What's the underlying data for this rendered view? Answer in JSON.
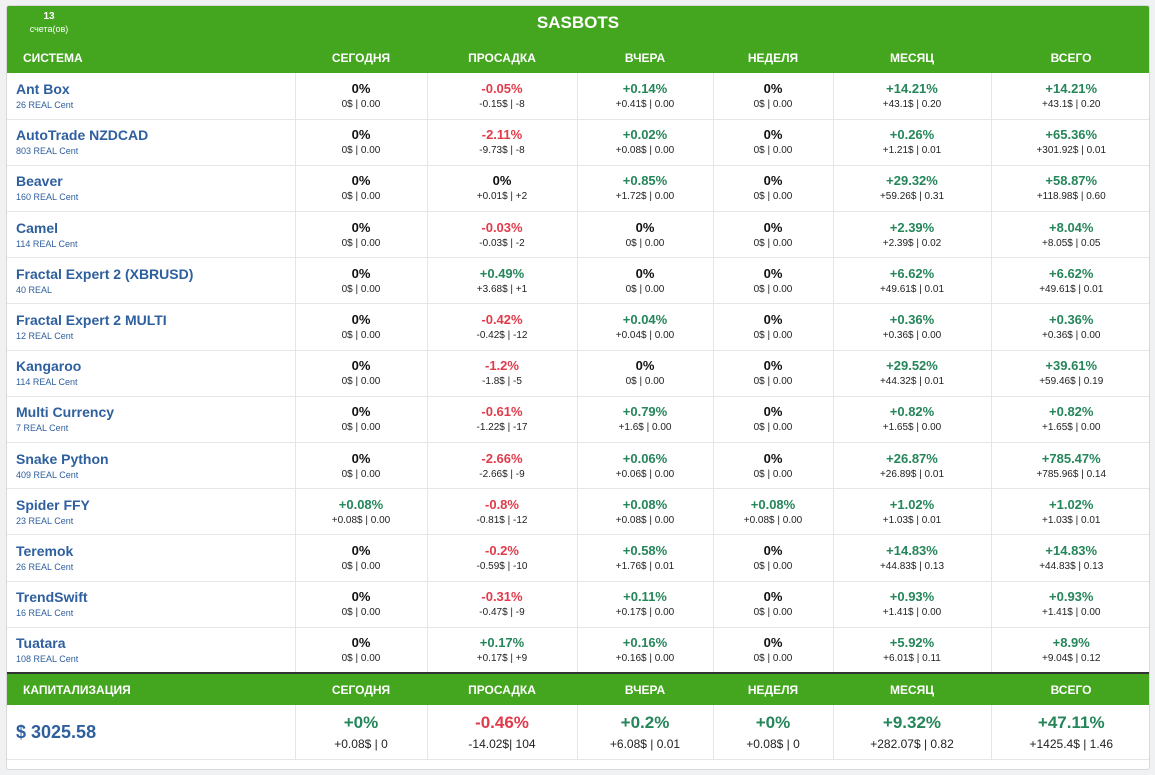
{
  "header": {
    "title": "SASBOTS",
    "accounts_count": "13",
    "accounts_label": "счета(ов)"
  },
  "columns": [
    "СИСТЕМА",
    "СЕГОДНЯ",
    "ПРОСАДКА",
    "ВЧЕРА",
    "НЕДЕЛЯ",
    "МЕСЯЦ",
    "ВСЕГО"
  ],
  "colors": {
    "header_green": "#44a51f",
    "positive": "#25865a",
    "negative": "#e13b4b",
    "link": "#2e5f9e"
  },
  "rows": [
    {
      "name": "Ant Box",
      "account": "26 REAL Cent",
      "cells": [
        [
          "0%",
          "0$ | 0.00"
        ],
        [
          "-0.05%",
          "-0.15$ | -8"
        ],
        [
          "+0.14%",
          "+0.41$ | 0.00"
        ],
        [
          "0%",
          "0$ | 0.00"
        ],
        [
          "+14.21%",
          "+43.1$ | 0.20"
        ],
        [
          "+14.21%",
          "+43.1$ | 0.20"
        ]
      ]
    },
    {
      "name": "AutoTrade NZDCAD",
      "account": "803 REAL Cent",
      "cells": [
        [
          "0%",
          "0$ | 0.00"
        ],
        [
          "-2.11%",
          "-9.73$ | -8"
        ],
        [
          "+0.02%",
          "+0.08$ | 0.00"
        ],
        [
          "0%",
          "0$ | 0.00"
        ],
        [
          "+0.26%",
          "+1.21$ | 0.01"
        ],
        [
          "+65.36%",
          "+301.92$ | 0.01"
        ]
      ]
    },
    {
      "name": "Beaver",
      "account": "160 REAL Cent",
      "cells": [
        [
          "0%",
          "0$ | 0.00"
        ],
        [
          "0%",
          "+0.01$ | +2"
        ],
        [
          "+0.85%",
          "+1.72$ | 0.00"
        ],
        [
          "0%",
          "0$ | 0.00"
        ],
        [
          "+29.32%",
          "+59.26$ | 0.31"
        ],
        [
          "+58.87%",
          "+118.98$ | 0.60"
        ]
      ]
    },
    {
      "name": "Camel",
      "account": "114 REAL Cent",
      "cells": [
        [
          "0%",
          "0$ | 0.00"
        ],
        [
          "-0.03%",
          "-0.03$ | -2"
        ],
        [
          "0%",
          "0$ | 0.00"
        ],
        [
          "0%",
          "0$ | 0.00"
        ],
        [
          "+2.39%",
          "+2.39$ | 0.02"
        ],
        [
          "+8.04%",
          "+8.05$ | 0.05"
        ]
      ]
    },
    {
      "name": "Fractal Expert 2 (XBRUSD)",
      "account": "40 REAL",
      "cells": [
        [
          "0%",
          "0$ | 0.00"
        ],
        [
          "+0.49%",
          "+3.68$ | +1"
        ],
        [
          "0%",
          "0$ | 0.00"
        ],
        [
          "0%",
          "0$ | 0.00"
        ],
        [
          "+6.62%",
          "+49.61$ | 0.01"
        ],
        [
          "+6.62%",
          "+49.61$ | 0.01"
        ]
      ]
    },
    {
      "name": "Fractal Expert 2 MULTI",
      "account": "12 REAL Cent",
      "cells": [
        [
          "0%",
          "0$ | 0.00"
        ],
        [
          "-0.42%",
          "-0.42$ | -12"
        ],
        [
          "+0.04%",
          "+0.04$ | 0.00"
        ],
        [
          "0%",
          "0$ | 0.00"
        ],
        [
          "+0.36%",
          "+0.36$ | 0.00"
        ],
        [
          "+0.36%",
          "+0.36$ | 0.00"
        ]
      ]
    },
    {
      "name": "Kangaroo",
      "account": "114 REAL Cent",
      "cells": [
        [
          "0%",
          "0$ | 0.00"
        ],
        [
          "-1.2%",
          "-1.8$ | -5"
        ],
        [
          "0%",
          "0$ | 0.00"
        ],
        [
          "0%",
          "0$ | 0.00"
        ],
        [
          "+29.52%",
          "+44.32$ | 0.01"
        ],
        [
          "+39.61%",
          "+59.46$ | 0.19"
        ]
      ]
    },
    {
      "name": "Multi Currency",
      "account": "7 REAL Cent",
      "cells": [
        [
          "0%",
          "0$ | 0.00"
        ],
        [
          "-0.61%",
          "-1.22$ | -17"
        ],
        [
          "+0.79%",
          "+1.6$ | 0.00"
        ],
        [
          "0%",
          "0$ | 0.00"
        ],
        [
          "+0.82%",
          "+1.65$ | 0.00"
        ],
        [
          "+0.82%",
          "+1.65$ | 0.00"
        ]
      ]
    },
    {
      "name": "Snake Python",
      "account": "409 REAL Cent",
      "cells": [
        [
          "0%",
          "0$ | 0.00"
        ],
        [
          "-2.66%",
          "-2.66$ | -9"
        ],
        [
          "+0.06%",
          "+0.06$ | 0.00"
        ],
        [
          "0%",
          "0$ | 0.00"
        ],
        [
          "+26.87%",
          "+26.89$ | 0.01"
        ],
        [
          "+785.47%",
          "+785.96$ | 0.14"
        ]
      ]
    },
    {
      "name": "Spider FFY",
      "account": "23 REAL Cent",
      "cells": [
        [
          "+0.08%",
          "+0.08$ | 0.00"
        ],
        [
          "-0.8%",
          "-0.81$ | -12"
        ],
        [
          "+0.08%",
          "+0.08$ | 0.00"
        ],
        [
          "+0.08%",
          "+0.08$ | 0.00"
        ],
        [
          "+1.02%",
          "+1.03$ | 0.01"
        ],
        [
          "+1.02%",
          "+1.03$ | 0.01"
        ]
      ]
    },
    {
      "name": "Teremok",
      "account": "26 REAL Cent",
      "cells": [
        [
          "0%",
          "0$ | 0.00"
        ],
        [
          "-0.2%",
          "-0.59$ | -10"
        ],
        [
          "+0.58%",
          "+1.76$ | 0.01"
        ],
        [
          "0%",
          "0$ | 0.00"
        ],
        [
          "+14.83%",
          "+44.83$ | 0.13"
        ],
        [
          "+14.83%",
          "+44.83$ | 0.13"
        ]
      ]
    },
    {
      "name": "TrendSwift",
      "account": "16 REAL Cent",
      "cells": [
        [
          "0%",
          "0$ | 0.00"
        ],
        [
          "-0.31%",
          "-0.47$ | -9"
        ],
        [
          "+0.11%",
          "+0.17$ | 0.00"
        ],
        [
          "0%",
          "0$ | 0.00"
        ],
        [
          "+0.93%",
          "+1.41$ | 0.00"
        ],
        [
          "+0.93%",
          "+1.41$ | 0.00"
        ]
      ]
    },
    {
      "name": "Tuatara",
      "account": "108 REAL Cent",
      "cells": [
        [
          "0%",
          "0$ | 0.00"
        ],
        [
          "+0.17%",
          "+0.17$ | +9"
        ],
        [
          "+0.16%",
          "+0.16$ | 0.00"
        ],
        [
          "0%",
          "0$ | 0.00"
        ],
        [
          "+5.92%",
          "+6.01$ | 0.11"
        ],
        [
          "+8.9%",
          "+9.04$ | 0.12"
        ]
      ]
    }
  ],
  "summary": {
    "columns": [
      "КАПИТАЛИЗАЦИЯ",
      "СЕГОДНЯ",
      "ПРОСАДКА",
      "ВЧЕРА",
      "НЕДЕЛЯ",
      "МЕСЯЦ",
      "ВСЕГО"
    ],
    "capital": "$ 3025.58",
    "cells": [
      [
        "+0%",
        "+0.08$ | 0"
      ],
      [
        "-0.46%",
        "-14.02$| 104"
      ],
      [
        "+0.2%",
        "+6.08$ | 0.01"
      ],
      [
        "+0%",
        "+0.08$ | 0"
      ],
      [
        "+9.32%",
        "+282.07$ | 0.82"
      ],
      [
        "+47.11%",
        "+1425.4$ | 1.46"
      ]
    ]
  }
}
